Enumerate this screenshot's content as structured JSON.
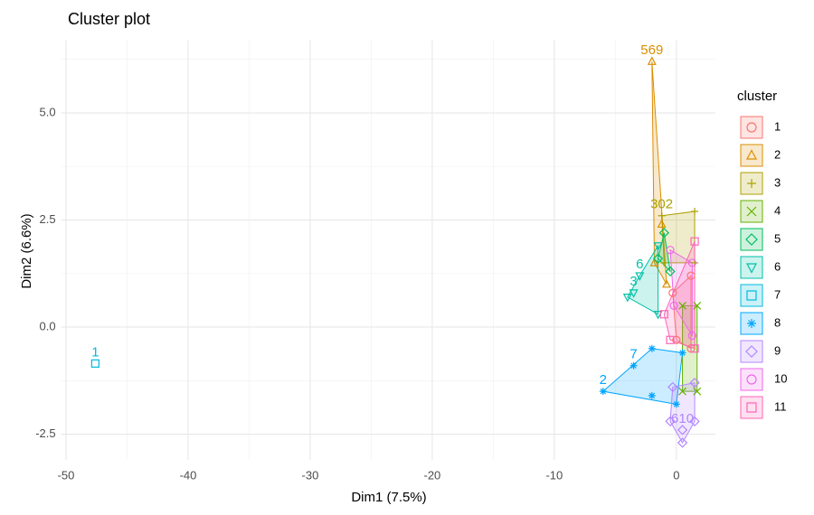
{
  "chart_data": {
    "type": "cluster",
    "title": "Cluster plot",
    "xlabel": "Dim1 (7.5%)",
    "ylabel": "Dim2 (6.6%)",
    "legend_title": "cluster",
    "legend": "right",
    "grid": true,
    "xlim": [
      -50.4,
      3.2
    ],
    "ylim": [
      -3.1,
      6.7
    ],
    "xticks": [
      -50,
      -40,
      -30,
      -20,
      -10,
      0
    ],
    "yticks": [
      -2.5,
      {
        "value": 0,
        "label": "0.0"
      },
      2.5,
      {
        "value": 5,
        "label": "5.0"
      }
    ],
    "xminor": [
      -45,
      -35,
      -25,
      -15,
      -5
    ],
    "yminor": [
      -1.25,
      1.25,
      3.75,
      6.25
    ],
    "series": [
      {
        "name": "1",
        "color": "#F8766D",
        "shape": "circle",
        "x": [
          -0.3,
          1.2,
          1.2,
          0
        ],
        "y": [
          0.8,
          1.2,
          -0.5,
          -0.3
        ],
        "labels": [
          null,
          null,
          null,
          null
        ]
      },
      {
        "name": "2",
        "color": "#DB8E00",
        "shape": "triangle",
        "x": [
          -2,
          -1.8,
          -0.8,
          -1.2
        ],
        "y": [
          6.2,
          1.5,
          1,
          2.4
        ],
        "labels": [
          "569",
          null,
          null,
          null
        ]
      },
      {
        "name": "3",
        "color": "#AEA200",
        "shape": "plus",
        "x": [
          -1.2,
          1.5,
          1.5,
          -1
        ],
        "y": [
          2.6,
          2.7,
          1.5,
          1.5
        ],
        "labels": [
          "302",
          null,
          null,
          null
        ]
      },
      {
        "name": "4",
        "color": "#64B200",
        "shape": "cross",
        "x": [
          0.5,
          1.7,
          1.7,
          0.5
        ],
        "y": [
          -1.5,
          -1.5,
          0.5,
          0.5
        ],
        "labels": [
          null,
          null,
          null,
          null
        ]
      },
      {
        "name": "5",
        "color": "#00BD5C",
        "shape": "diamond",
        "x": [
          -1.5,
          -1,
          -0.5
        ],
        "y": [
          1.6,
          2.2,
          1.3
        ],
        "labels": [
          null,
          null,
          null
        ]
      },
      {
        "name": "6",
        "color": "#00C1A7",
        "shape": "triangle-down",
        "x": [
          -3,
          -3.5,
          -4,
          -1.5,
          -1.5
        ],
        "y": [
          1.2,
          0.8,
          0.7,
          0.3,
          1.9
        ],
        "labels": [
          "6",
          "3",
          null,
          null,
          null
        ]
      },
      {
        "name": "7",
        "color": "#00BADE",
        "shape": "square",
        "x": [
          -47.6
        ],
        "y": [
          -0.85
        ],
        "labels": [
          "1"
        ]
      },
      {
        "name": "8",
        "color": "#00A6FF",
        "shape": "star",
        "x": [
          -6,
          -3.5,
          -2,
          -2,
          0,
          0.5
        ],
        "y": [
          -1.5,
          -0.9,
          -1.6,
          -0.5,
          -1.8,
          -0.6
        ],
        "labels": [
          "2",
          "7",
          null,
          null,
          null,
          null
        ]
      },
      {
        "name": "9",
        "color": "#B385FF",
        "shape": "diamond",
        "x": [
          -0.5,
          0.5,
          1.5,
          -0.3,
          1.5,
          0.5
        ],
        "y": [
          -2.2,
          -2.7,
          -2.2,
          -1.4,
          -1.3,
          -2.4
        ],
        "labels": [
          null,
          null,
          null,
          null,
          null,
          "610"
        ]
      },
      {
        "name": "10",
        "color": "#EF67EB",
        "shape": "circle",
        "x": [
          -0.5,
          1.3,
          1.3,
          -0.2
        ],
        "y": [
          1.8,
          1.5,
          -0.2,
          0.5
        ],
        "labels": [
          null,
          null,
          null,
          null
        ]
      },
      {
        "name": "11",
        "color": "#FF63B6",
        "shape": "square",
        "x": [
          -1,
          1.5,
          1.5,
          -0.5
        ],
        "y": [
          0.3,
          2,
          -0.5,
          -0.3
        ],
        "labels": [
          null,
          null,
          null,
          null
        ]
      }
    ]
  }
}
